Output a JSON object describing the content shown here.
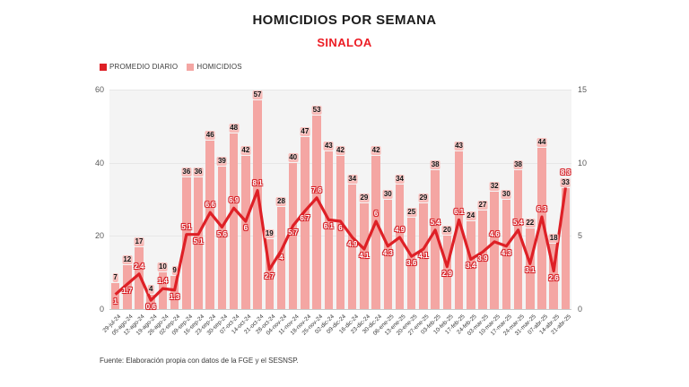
{
  "page": {
    "title": "HOMICIDIOS POR SEMANA",
    "subtitle": "SINALOA",
    "source": "Fuente: Elaboración propia con datos de la FGE y el SESNSP."
  },
  "legend": {
    "items": [
      {
        "label": "PROMEDIO DIARIO",
        "color": "#DE2026"
      },
      {
        "label": "HOMICIDIOS",
        "color": "#F4A6A3"
      }
    ]
  },
  "chart_data": {
    "type": "bar",
    "subtype": "combo-bar-line",
    "title": "HOMICIDIOS POR SEMANA",
    "subtitle": "SINALOA",
    "grid": true,
    "legend_position": "top-left",
    "categories": [
      "29-jul-24",
      "05-ago-24",
      "12-ago-24",
      "19-ago-24",
      "26-ago-24",
      "02-sep-24",
      "09-sep-24",
      "16-sep-24",
      "23-sep-24",
      "30-sep-24",
      "07-oct-24",
      "14-oct-24",
      "21-oct-24",
      "28-oct-24",
      "04-nov-24",
      "11-nov-24",
      "18-nov-24",
      "25-nov-24",
      "02-dic-24",
      "09-dic-24",
      "16-dic-24",
      "23-dic-24",
      "30-dic-24",
      "06-ene-25",
      "13-ene-25",
      "20-ene-25",
      "27-ene-25",
      "03-feb-25",
      "10-feb-25",
      "17-feb-25",
      "24-feb-25",
      "03-mar-25",
      "10-mar-25",
      "17-mar-25",
      "24-mar-25",
      "31-mar-25",
      "07-abr-25",
      "14-abr-25",
      "21-abr-25"
    ],
    "series": [
      {
        "name": "HOMICIDIOS",
        "type": "bar",
        "axis": "left",
        "color": "#F4A6A3",
        "values": [
          7,
          12,
          17,
          4,
          10,
          9,
          36,
          36,
          46,
          39,
          48,
          42,
          57,
          19,
          28,
          40,
          47,
          53,
          43,
          42,
          34,
          29,
          42,
          30,
          34,
          25,
          29,
          38,
          20,
          43,
          24,
          27,
          32,
          30,
          38,
          22,
          44,
          18,
          33
        ]
      },
      {
        "name": "PROMEDIO DIARIO",
        "type": "line",
        "axis": "right",
        "color": "#DE2026",
        "values": [
          1,
          1.7,
          2.4,
          0.6,
          1.4,
          1.3,
          5.1,
          5.1,
          6.6,
          5.6,
          6.9,
          6,
          8.1,
          2.7,
          4,
          5.7,
          6.7,
          7.6,
          6.1,
          6,
          4.9,
          4.1,
          6,
          4.3,
          4.9,
          3.6,
          4.1,
          5.4,
          2.9,
          6.1,
          3.4,
          3.9,
          4.6,
          4.3,
          5.4,
          3.1,
          6.3,
          2.6,
          8.3
        ]
      }
    ],
    "left_axis": {
      "ticks": [
        0,
        20,
        40,
        60
      ],
      "max": 60
    },
    "right_axis": {
      "ticks": [
        0,
        5,
        10,
        15
      ],
      "max": 15
    }
  }
}
